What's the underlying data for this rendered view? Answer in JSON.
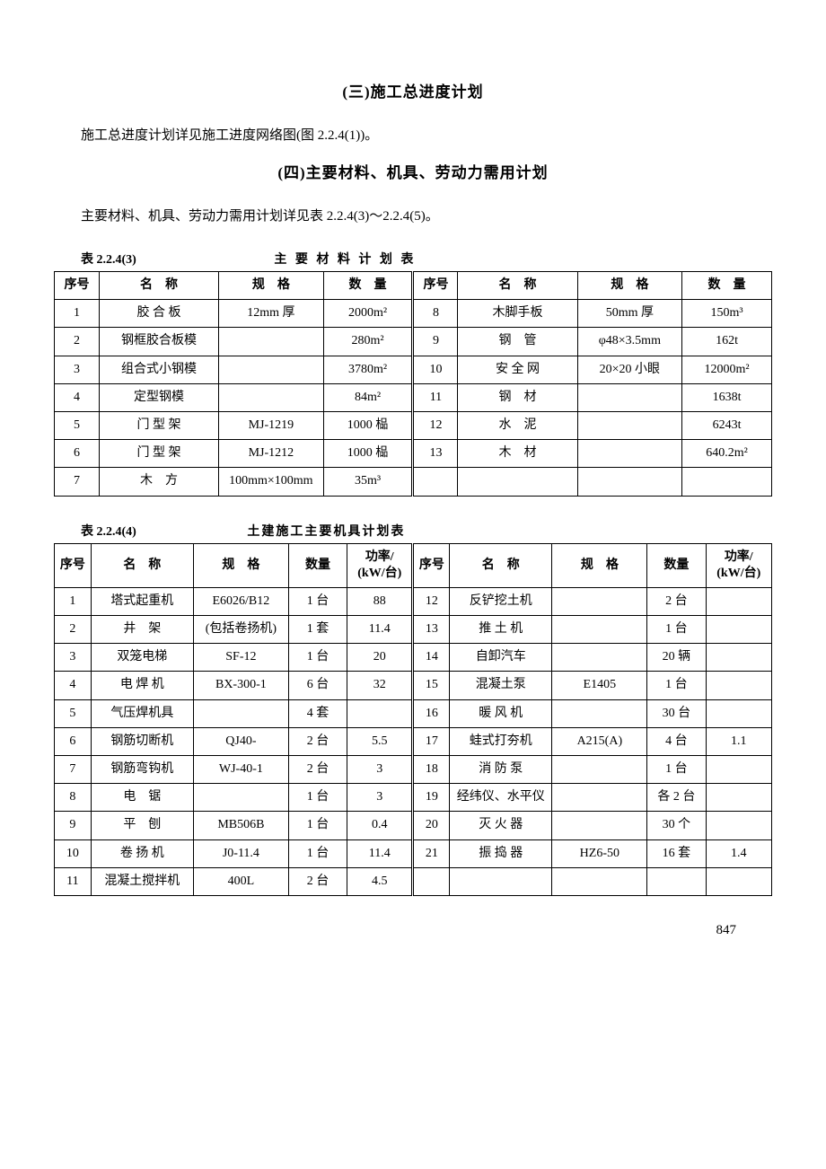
{
  "section3": {
    "heading": "(三)施工总进度计划",
    "para": "施工总进度计划详见施工进度网络图(图 2.2.4(1))。"
  },
  "section4": {
    "heading": "(四)主要材料、机具、劳动力需用计划",
    "para": "主要材料、机具、劳动力需用计划详见表 2.2.4(3)～2.2.4(5)。"
  },
  "table1": {
    "label": "表 2.2.4(3)",
    "title": "主 要 材 料 计 划 表",
    "headers": {
      "seq": "序号",
      "name": "名　称",
      "spec": "规　格",
      "qty": "数　量"
    },
    "left": [
      {
        "seq": "1",
        "name": "胶 合 板",
        "spec": "12mm 厚",
        "qty": "2000m²"
      },
      {
        "seq": "2",
        "name": "钢框胶合板模",
        "spec": "",
        "qty": "280m²"
      },
      {
        "seq": "3",
        "name": "组合式小钢模",
        "spec": "",
        "qty": "3780m²"
      },
      {
        "seq": "4",
        "name": "定型钢模",
        "spec": "",
        "qty": "84m²"
      },
      {
        "seq": "5",
        "name": "门 型 架",
        "spec": "MJ-1219",
        "qty": "1000 榀"
      },
      {
        "seq": "6",
        "name": "门 型 架",
        "spec": "MJ-1212",
        "qty": "1000 榀"
      },
      {
        "seq": "7",
        "name": "木　方",
        "spec": "100mm×100mm",
        "qty": "35m³"
      }
    ],
    "right": [
      {
        "seq": "8",
        "name": "木脚手板",
        "spec": "50mm 厚",
        "qty": "150m³"
      },
      {
        "seq": "9",
        "name": "钢　管",
        "spec": "φ48×3.5mm",
        "qty": "162t"
      },
      {
        "seq": "10",
        "name": "安 全 网",
        "spec": "20×20 小眼",
        "qty": "12000m²"
      },
      {
        "seq": "11",
        "name": "钢　材",
        "spec": "",
        "qty": "1638t"
      },
      {
        "seq": "12",
        "name": "水　泥",
        "spec": "",
        "qty": "6243t"
      },
      {
        "seq": "13",
        "name": "木　材",
        "spec": "",
        "qty": "640.2m²"
      },
      {
        "seq": "",
        "name": "",
        "spec": "",
        "qty": ""
      }
    ]
  },
  "table2": {
    "label": "表 2.2.4(4)",
    "title": "土建施工主要机具计划表",
    "headers": {
      "seq": "序号",
      "name": "名　称",
      "spec": "规　格",
      "qty": "数量",
      "pow": "功率/\n(kW/台)"
    },
    "left": [
      {
        "seq": "1",
        "name": "塔式起重机",
        "spec": "E6026/B12",
        "qty": "1 台",
        "pow": "88"
      },
      {
        "seq": "2",
        "name": "井　架",
        "spec": "(包括卷扬机)",
        "qty": "1 套",
        "pow": "11.4"
      },
      {
        "seq": "3",
        "name": "双笼电梯",
        "spec": "SF-12",
        "qty": "1 台",
        "pow": "20"
      },
      {
        "seq": "4",
        "name": "电 焊 机",
        "spec": "BX-300-1",
        "qty": "6 台",
        "pow": "32"
      },
      {
        "seq": "5",
        "name": "气压焊机具",
        "spec": "",
        "qty": "4 套",
        "pow": ""
      },
      {
        "seq": "6",
        "name": "钢筋切断机",
        "spec": "QJ40-",
        "qty": "2 台",
        "pow": "5.5"
      },
      {
        "seq": "7",
        "name": "钢筋弯钩机",
        "spec": "WJ-40-1",
        "qty": "2 台",
        "pow": "3"
      },
      {
        "seq": "8",
        "name": "电　锯",
        "spec": "",
        "qty": "1 台",
        "pow": "3"
      },
      {
        "seq": "9",
        "name": "平　刨",
        "spec": "MB506B",
        "qty": "1 台",
        "pow": "0.4"
      },
      {
        "seq": "10",
        "name": "卷 扬 机",
        "spec": "J0-11.4",
        "qty": "1 台",
        "pow": "11.4"
      },
      {
        "seq": "11",
        "name": "混凝土搅拌机",
        "spec": "400L",
        "qty": "2 台",
        "pow": "4.5"
      }
    ],
    "right": [
      {
        "seq": "12",
        "name": "反铲挖土机",
        "spec": "",
        "qty": "2 台",
        "pow": ""
      },
      {
        "seq": "13",
        "name": "推 土 机",
        "spec": "",
        "qty": "1 台",
        "pow": ""
      },
      {
        "seq": "14",
        "name": "自卸汽车",
        "spec": "",
        "qty": "20 辆",
        "pow": ""
      },
      {
        "seq": "15",
        "name": "混凝土泵",
        "spec": "E1405",
        "qty": "1 台",
        "pow": ""
      },
      {
        "seq": "16",
        "name": "暖 风 机",
        "spec": "",
        "qty": "30 台",
        "pow": ""
      },
      {
        "seq": "17",
        "name": "蛙式打夯机",
        "spec": "A215(A)",
        "qty": "4 台",
        "pow": "1.1"
      },
      {
        "seq": "18",
        "name": "消 防 泵",
        "spec": "",
        "qty": "1 台",
        "pow": ""
      },
      {
        "seq": "19",
        "name": "经纬仪、水平仪",
        "spec": "",
        "qty": "各 2 台",
        "pow": ""
      },
      {
        "seq": "20",
        "name": "灭 火 器",
        "spec": "",
        "qty": "30 个",
        "pow": ""
      },
      {
        "seq": "21",
        "name": "振 捣 器",
        "spec": "HZ6-50",
        "qty": "16 套",
        "pow": "1.4"
      },
      {
        "seq": "",
        "name": "",
        "spec": "",
        "qty": "",
        "pow": ""
      }
    ]
  },
  "page_number": "847"
}
